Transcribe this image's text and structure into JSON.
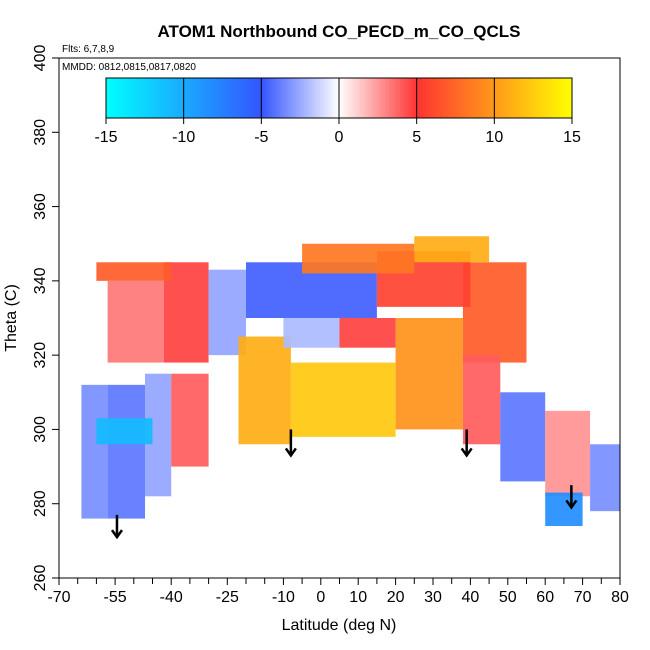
{
  "chart_data": {
    "type": "heatmap",
    "title": "ATOM1 Northbound CO_PECD_m_CO_QCLS",
    "annotations": [
      "Flts: 6,7,8,9",
      "MMDD: 0812,0815,0817,0820"
    ],
    "xlabel": "Latitude (deg N)",
    "ylabel": "Theta (C)",
    "xlim": [
      -70,
      80
    ],
    "ylim": [
      260,
      400
    ],
    "x_major_ticks": [
      -70,
      -55,
      -40,
      -25,
      -10,
      0,
      10,
      20,
      30,
      40,
      50,
      60,
      70,
      80
    ],
    "x_minor_ticks": [
      -65,
      -60,
      -50,
      -45,
      -35,
      -30,
      -20,
      -15,
      -5,
      5,
      15,
      25,
      35,
      45,
      55,
      65,
      75
    ],
    "y_ticks": [
      260,
      280,
      300,
      320,
      340,
      360,
      380,
      400
    ],
    "colorbar": {
      "range": [
        -15,
        15
      ],
      "ticks": [
        -15,
        -10,
        -5,
        0,
        5,
        10,
        15
      ],
      "colors": [
        "#00ffff",
        "#3355ff",
        "#ffffff",
        "#ff3333",
        "#ffff00"
      ]
    },
    "bands": [
      {
        "lat": [
          -64,
          -57
        ],
        "theta": [
          276,
          312
        ],
        "value": -5
      },
      {
        "lat": [
          -57,
          -47
        ],
        "theta": [
          276,
          312
        ],
        "value": -6
      },
      {
        "lat": [
          -47,
          -40
        ],
        "theta": [
          282,
          315
        ],
        "value": -4
      },
      {
        "lat": [
          -40,
          -30
        ],
        "theta": [
          290,
          315
        ],
        "value": 6
      },
      {
        "lat": [
          -57,
          -42
        ],
        "theta": [
          318,
          340
        ],
        "value": 5
      },
      {
        "lat": [
          -42,
          -30
        ],
        "theta": [
          318,
          345
        ],
        "value": 7
      },
      {
        "lat": [
          -30,
          -20
        ],
        "theta": [
          320,
          343
        ],
        "value": -4
      },
      {
        "lat": [
          -22,
          -8
        ],
        "theta": [
          296,
          325
        ],
        "value": 12
      },
      {
        "lat": [
          -8,
          20
        ],
        "theta": [
          298,
          318
        ],
        "value": 13
      },
      {
        "lat": [
          20,
          38
        ],
        "theta": [
          300,
          330
        ],
        "value": 11
      },
      {
        "lat": [
          38,
          55
        ],
        "theta": [
          318,
          345
        ],
        "value": 9
      },
      {
        "lat": [
          38,
          48
        ],
        "theta": [
          296,
          320
        ],
        "value": 6
      },
      {
        "lat": [
          48,
          60
        ],
        "theta": [
          286,
          310
        ],
        "value": -6
      },
      {
        "lat": [
          60,
          72
        ],
        "theta": [
          282,
          305
        ],
        "value": 4
      },
      {
        "lat": [
          72,
          80
        ],
        "theta": [
          278,
          296
        ],
        "value": -5
      },
      {
        "lat": [
          -20,
          15
        ],
        "theta": [
          330,
          345
        ],
        "value": -7
      },
      {
        "lat": [
          15,
          40
        ],
        "theta": [
          333,
          348
        ],
        "value": 8
      },
      {
        "lat": [
          -5,
          25
        ],
        "theta": [
          342,
          350
        ],
        "value": 10
      },
      {
        "lat": [
          25,
          45
        ],
        "theta": [
          345,
          352
        ],
        "value": 12
      },
      {
        "lat": [
          -60,
          -40
        ],
        "theta": [
          340,
          345
        ],
        "value": 9
      },
      {
        "lat": [
          -60,
          -45
        ],
        "theta": [
          296,
          303
        ],
        "value": -12
      },
      {
        "lat": [
          -10,
          5
        ],
        "theta": [
          322,
          330
        ],
        "value": -3
      },
      {
        "lat": [
          5,
          20
        ],
        "theta": [
          322,
          330
        ],
        "value": 7
      },
      {
        "lat": [
          60,
          70
        ],
        "theta": [
          274,
          283
        ],
        "value": -10
      }
    ],
    "arrows": [
      {
        "lat": -54.5,
        "theta_from": 277,
        "theta_to": 271
      },
      {
        "lat": -8,
        "theta_from": 300,
        "theta_to": 293
      },
      {
        "lat": 39,
        "theta_from": 300,
        "theta_to": 293
      },
      {
        "lat": 67,
        "theta_from": 285,
        "theta_to": 279
      }
    ]
  }
}
